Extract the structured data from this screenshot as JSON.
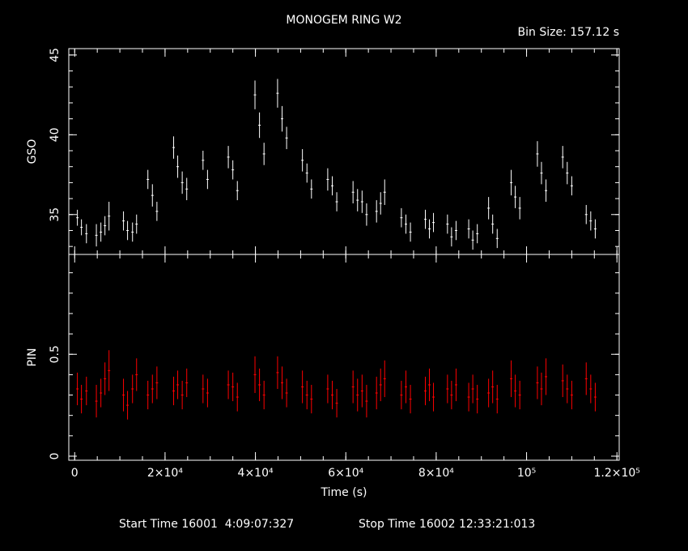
{
  "title": "MONOGEM RING W2",
  "bin_size": "Bin Size: 157.12 s",
  "footer": {
    "start": "Start Time 16001  4:09:07:327",
    "stop": "Stop Time 16002 12:33:21:013"
  },
  "colors": {
    "background": "#000000",
    "axes": "#ffffff",
    "gso": "#ffffff",
    "pin": "#ff0000"
  },
  "chart_data": [
    {
      "type": "scatter",
      "panel": "top",
      "ylabel": "GSO",
      "xlabel": "",
      "xlim": [
        -1300,
        120500
      ],
      "ylim": [
        32.5,
        45.4
      ],
      "yticks": [
        35,
        40,
        45
      ],
      "ytick_labels": [
        "35",
        "40",
        "45"
      ],
      "series": [
        {
          "color": "#ffffff",
          "x": [
            600,
            1500,
            2600,
            4800,
            5800,
            6700,
            7600,
            10800,
            11700,
            12800,
            13700,
            16200,
            17200,
            18200,
            21900,
            22800,
            23800,
            24800,
            28400,
            29400,
            34000,
            35000,
            36000,
            39900,
            40900,
            41900,
            44900,
            45900,
            46900,
            50400,
            51400,
            52400,
            56000,
            57000,
            58000,
            61600,
            62600,
            63600,
            64600,
            66800,
            67700,
            68600,
            72300,
            73300,
            74300,
            77600,
            78500,
            79400,
            82500,
            83400,
            84400,
            87200,
            88100,
            89100,
            91600,
            92500,
            93500,
            96600,
            97500,
            98500,
            102400,
            103300,
            104300,
            108000,
            109000,
            110000,
            113200,
            114200,
            115200
          ],
          "y": [
            34.8,
            34.2,
            33.8,
            33.7,
            33.9,
            34.3,
            34.9,
            34.6,
            34.0,
            33.9,
            34.4,
            37.2,
            36.2,
            35.2,
            39.2,
            38.0,
            37.0,
            36.6,
            38.4,
            37.2,
            38.6,
            37.8,
            36.5,
            42.5,
            40.6,
            38.8,
            42.6,
            41.0,
            39.8,
            38.4,
            37.6,
            36.6,
            37.2,
            36.8,
            35.8,
            36.4,
            35.9,
            35.8,
            35.0,
            35.2,
            35.7,
            36.4,
            34.8,
            34.4,
            33.9,
            34.7,
            34.1,
            34.5,
            34.4,
            33.6,
            34.0,
            34.1,
            33.4,
            33.8,
            35.4,
            34.4,
            33.5,
            37.0,
            36.1,
            35.4,
            38.8,
            37.6,
            36.5,
            38.6,
            37.6,
            36.8,
            35.0,
            34.6,
            34.1
          ],
          "errors": [
            0.5,
            0.5,
            0.6,
            0.7,
            0.6,
            0.6,
            0.9,
            0.6,
            0.6,
            0.6,
            0.6,
            0.6,
            0.7,
            0.6,
            0.7,
            0.7,
            0.7,
            0.7,
            0.6,
            0.6,
            0.7,
            0.6,
            0.6,
            0.9,
            0.8,
            0.7,
            0.9,
            0.8,
            0.7,
            0.7,
            0.6,
            0.6,
            0.7,
            0.6,
            0.6,
            0.7,
            0.7,
            0.7,
            0.7,
            0.7,
            0.7,
            0.8,
            0.6,
            0.6,
            0.6,
            0.6,
            0.6,
            0.6,
            0.6,
            0.6,
            0.6,
            0.6,
            0.6,
            0.6,
            0.7,
            0.6,
            0.6,
            0.8,
            0.7,
            0.7,
            0.8,
            0.7,
            0.7,
            0.7,
            0.7,
            0.6,
            0.6,
            0.6,
            0.6
          ]
        }
      ]
    },
    {
      "type": "scatter",
      "panel": "bottom",
      "ylabel": "PIN",
      "xlabel": "Time (s)",
      "xlim": [
        -1300,
        120500
      ],
      "ylim": [
        -0.02,
        0.99
      ],
      "yticks": [
        0,
        0.5
      ],
      "ytick_labels": [
        "0",
        "0.5"
      ],
      "xticks": [
        0,
        20000,
        40000,
        60000,
        80000,
        100000,
        120000
      ],
      "xtick_labels": [
        "0",
        "2×10⁴",
        "4×10⁴",
        "6×10⁴",
        "8×10⁴",
        "10⁵",
        "1.2×10⁵"
      ],
      "series": [
        {
          "color": "#ff0000",
          "x": [
            600,
            1500,
            2600,
            4800,
            5800,
            6700,
            7600,
            10800,
            11700,
            12800,
            13700,
            16200,
            17200,
            18200,
            21900,
            22800,
            23800,
            24800,
            28400,
            29400,
            34000,
            35000,
            36000,
            39900,
            40900,
            41900,
            44900,
            45900,
            46900,
            50400,
            51400,
            52400,
            56000,
            57000,
            58000,
            61600,
            62600,
            63600,
            64600,
            66800,
            67700,
            68600,
            72300,
            73300,
            74300,
            77600,
            78500,
            79400,
            82500,
            83400,
            84400,
            87200,
            88100,
            89100,
            91600,
            92500,
            93500,
            96600,
            97500,
            98500,
            102400,
            103300,
            104300,
            108000,
            109000,
            110000,
            113200,
            114200,
            115200
          ],
          "y": [
            0.33,
            0.28,
            0.32,
            0.27,
            0.31,
            0.38,
            0.42,
            0.3,
            0.25,
            0.33,
            0.4,
            0.3,
            0.33,
            0.36,
            0.32,
            0.35,
            0.3,
            0.36,
            0.33,
            0.31,
            0.35,
            0.34,
            0.29,
            0.4,
            0.35,
            0.3,
            0.41,
            0.36,
            0.31,
            0.34,
            0.3,
            0.28,
            0.33,
            0.3,
            0.26,
            0.34,
            0.3,
            0.32,
            0.27,
            0.31,
            0.35,
            0.38,
            0.3,
            0.34,
            0.28,
            0.32,
            0.35,
            0.29,
            0.33,
            0.3,
            0.35,
            0.29,
            0.33,
            0.28,
            0.31,
            0.34,
            0.28,
            0.38,
            0.32,
            0.3,
            0.36,
            0.33,
            0.39,
            0.37,
            0.33,
            0.3,
            0.38,
            0.33,
            0.29
          ],
          "errors": [
            0.08,
            0.07,
            0.07,
            0.08,
            0.07,
            0.08,
            0.1,
            0.08,
            0.07,
            0.07,
            0.08,
            0.07,
            0.07,
            0.08,
            0.07,
            0.07,
            0.07,
            0.07,
            0.07,
            0.07,
            0.07,
            0.07,
            0.07,
            0.09,
            0.08,
            0.07,
            0.08,
            0.08,
            0.07,
            0.08,
            0.07,
            0.07,
            0.07,
            0.07,
            0.07,
            0.08,
            0.08,
            0.08,
            0.08,
            0.08,
            0.08,
            0.09,
            0.07,
            0.08,
            0.07,
            0.07,
            0.08,
            0.07,
            0.07,
            0.07,
            0.08,
            0.07,
            0.07,
            0.07,
            0.07,
            0.08,
            0.07,
            0.09,
            0.08,
            0.07,
            0.08,
            0.08,
            0.09,
            0.08,
            0.07,
            0.07,
            0.08,
            0.07,
            0.07
          ]
        }
      ]
    }
  ]
}
